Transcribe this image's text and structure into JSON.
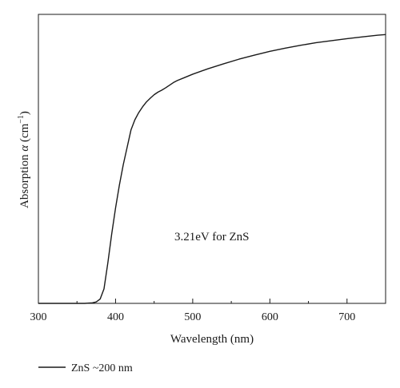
{
  "chart_data": {
    "type": "line",
    "xlabel": "Wavelength (nm)",
    "ylabel": {
      "prefix": "Absorption ",
      "symbol": "α",
      "unit_open": " (cm",
      "unit_exp": "−1",
      "unit_close": ")"
    },
    "xlim": [
      300,
      750
    ],
    "ylim": [
      0,
      1
    ],
    "xticks": [
      300,
      400,
      500,
      600,
      700
    ],
    "xtick_labels": [
      "300",
      "400",
      "500",
      "600",
      "700"
    ],
    "yticks_labeled": false,
    "grid": false,
    "annotation": {
      "text": "3.21eV for ZnS",
      "x": 470,
      "y": 0.27
    },
    "legend": {
      "position": "bottom-left",
      "entries": [
        "ZnS ~200 nm"
      ]
    },
    "series": [
      {
        "name": "ZnS ~200 nm",
        "color": "#1a1a1a",
        "x": [
          300,
          360,
          370,
          375,
          380,
          385,
          390,
          395,
          400,
          405,
          410,
          415,
          420,
          425,
          430,
          435,
          440,
          445,
          450,
          455,
          460,
          465,
          470,
          475,
          480,
          490,
          500,
          520,
          540,
          560,
          580,
          600,
          620,
          640,
          660,
          680,
          700,
          720,
          740,
          750
        ],
        "values": [
          0.0,
          0.0,
          0.002,
          0.005,
          0.015,
          0.05,
          0.14,
          0.24,
          0.33,
          0.41,
          0.48,
          0.54,
          0.6,
          0.635,
          0.66,
          0.68,
          0.697,
          0.71,
          0.722,
          0.731,
          0.738,
          0.746,
          0.755,
          0.764,
          0.771,
          0.782,
          0.793,
          0.812,
          0.829,
          0.845,
          0.859,
          0.872,
          0.883,
          0.893,
          0.902,
          0.909,
          0.916,
          0.922,
          0.928,
          0.93
        ]
      }
    ]
  }
}
